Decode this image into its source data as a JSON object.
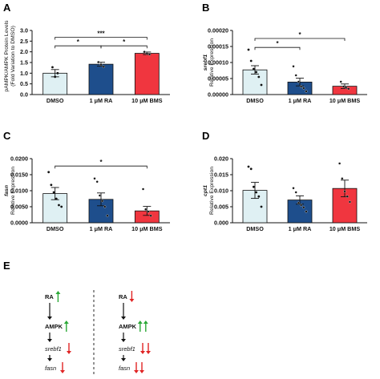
{
  "panel_letters": [
    "A",
    "B",
    "C",
    "D",
    "E"
  ],
  "colors": {
    "dmso": "#dff0f3",
    "ra": "#1e4e8c",
    "bms": "#f0363f",
    "up_arrow": "#2aa836",
    "down_arrow": "#e02424",
    "axis": "#111111"
  },
  "chart_data": [
    {
      "panel": "A",
      "type": "bar",
      "ylabel": "pAMPK/AMPK Protein Levels",
      "ylabel2": "(Fold Variation to DMSO)",
      "categories": [
        "DMSO",
        "1 μM RA",
        "10 μM BMS"
      ],
      "values": [
        1.0,
        1.42,
        1.93
      ],
      "errors": [
        0.17,
        0.09,
        0.06
      ],
      "points": [
        [
          1.28,
          0.83,
          1.0
        ],
        [
          1.52,
          1.4,
          1.3
        ],
        [
          2.0,
          1.92,
          1.88
        ]
      ],
      "ylim": [
        0,
        3.0
      ],
      "yticks": [
        "0.0",
        "0.5",
        "1.0",
        "1.5",
        "2.0",
        "2.5",
        "3.0"
      ],
      "ytick_values": [
        0,
        0.5,
        1.0,
        1.5,
        2.0,
        2.5,
        3.0
      ],
      "significance": [
        {
          "from": 0,
          "to": 1,
          "label": "*",
          "level": 2.28
        },
        {
          "from": 1,
          "to": 2,
          "label": "*",
          "level": 2.28
        },
        {
          "from": 0,
          "to": 2,
          "label": "***",
          "level": 2.68
        }
      ]
    },
    {
      "panel": "B",
      "type": "bar",
      "ylabel_italic": "srebf1",
      "ylabel": "Relative Expression",
      "categories": [
        "DMSO",
        "1 μM RA",
        "10 μM BMS"
      ],
      "values": [
        7.7e-05,
        3.9e-05,
        2.6e-05
      ],
      "errors": [
        1.3e-05,
        1.2e-05,
        7e-06
      ],
      "points": [
        [
          0.00014,
          0.000105,
          8e-05,
          7e-05,
          5.5e-05,
          3e-05
        ],
        [
          8.8e-05,
          6e-05,
          4e-05,
          2.5e-05,
          2e-05,
          1e-05
        ],
        [
          4e-05,
          2.5e-05,
          2.2e-05,
          1.8e-05
        ]
      ],
      "ylim": [
        0,
        0.0002
      ],
      "yticks": [
        "0.00000",
        "0.00005",
        "0.00010",
        "0.00015",
        "0.00020"
      ],
      "ytick_values": [
        0,
        5e-05,
        0.0001,
        0.00015,
        0.0002
      ],
      "significance": [
        {
          "from": 0,
          "to": 1,
          "label": "*",
          "level": 0.000147
        },
        {
          "from": 0,
          "to": 2,
          "label": "*",
          "level": 0.000175
        }
      ]
    },
    {
      "panel": "C",
      "type": "bar",
      "ylabel_italic": "fasn",
      "ylabel": "Relative Expression",
      "categories": [
        "DMSO",
        "1 μM RA",
        "10 μM BMS"
      ],
      "values": [
        0.0091,
        0.0073,
        0.0037
      ],
      "errors": [
        0.0019,
        0.002,
        0.0014
      ],
      "points": [
        [
          0.0158,
          0.0118,
          0.0095,
          0.0075,
          0.0055,
          0.005
        ],
        [
          0.0138,
          0.0128,
          0.0085,
          0.0068,
          0.005,
          0.0022
        ],
        [
          0.0105,
          0.0042,
          0.0035,
          0.0022
        ]
      ],
      "ylim": [
        0,
        0.02
      ],
      "yticks": [
        "0.0000",
        "0.0050",
        "0.0100",
        "0.0150",
        "0.0200"
      ],
      "ytick_values": [
        0,
        0.005,
        0.01,
        0.015,
        0.02
      ],
      "significance": [
        {
          "from": 0,
          "to": 2,
          "label": "*",
          "level": 0.0177
        }
      ]
    },
    {
      "panel": "D",
      "type": "bar",
      "ylabel_italic": "cpt1",
      "ylabel": "Relative Expression",
      "categories": [
        "DMSO",
        "1 μM RA",
        "10 μM BMS"
      ],
      "values": [
        0.0101,
        0.0071,
        0.0107
      ],
      "errors": [
        0.0025,
        0.0013,
        0.0026
      ],
      "points": [
        [
          0.0175,
          0.0168,
          0.0112,
          0.0095,
          0.0082,
          0.005
        ],
        [
          0.0108,
          0.0095,
          0.0062,
          0.0055,
          0.0048,
          0.0035
        ],
        [
          0.0185,
          0.0138,
          0.0098,
          0.0082,
          0.0065
        ]
      ],
      "ylim": [
        0,
        0.02
      ],
      "yticks": [
        "0.000",
        "0.005",
        "0.010",
        "0.015",
        "0.020"
      ],
      "ytick_values": [
        0,
        0.005,
        0.01,
        0.015,
        0.02
      ],
      "significance": []
    }
  ],
  "pathway": {
    "left": [
      {
        "label": "RA",
        "italic": false,
        "arrows": [
          "up"
        ]
      },
      {
        "label": "AMPK",
        "italic": false,
        "arrows": [
          "up"
        ]
      },
      {
        "label": "srebf1",
        "italic": true,
        "arrows": [
          "down"
        ]
      },
      {
        "label": "fasn",
        "italic": true,
        "arrows": [
          "down"
        ]
      }
    ],
    "right": [
      {
        "label": "RA",
        "italic": false,
        "arrows": [
          "down"
        ]
      },
      {
        "label": "AMPK",
        "italic": false,
        "arrows": [
          "up",
          "up"
        ]
      },
      {
        "label": "srebf1",
        "italic": true,
        "arrows": [
          "down",
          "down"
        ]
      },
      {
        "label": "fasn",
        "italic": true,
        "arrows": [
          "down",
          "down"
        ]
      }
    ]
  }
}
